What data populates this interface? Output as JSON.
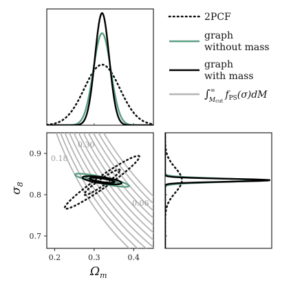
{
  "colors": {
    "pcf": "#111111",
    "graph_without_mass": "#5a9e82",
    "graph_with_mass": "#000000",
    "press_schechter": "#b4b4b4",
    "axes": "#222222"
  },
  "chart_data": {
    "type": "corner",
    "legend": {
      "placement": "top-right",
      "entries": [
        {
          "key": "pcf",
          "label": "2PCF",
          "style": "dotted"
        },
        {
          "key": "graph_without_mass",
          "label_lines": [
            "graph",
            "without mass"
          ],
          "style": "solid"
        },
        {
          "key": "graph_with_mass",
          "label_lines": [
            "graph",
            "with mass"
          ],
          "style": "solid"
        },
        {
          "key": "press_schechter",
          "label_parts": {
            "integral": "∫",
            "upper": "∞",
            "lower": "M",
            "lower_sub": "cut",
            "f": "f",
            "f_sub": "PS",
            "tail": "(σ)dM"
          },
          "style": "solid"
        }
      ]
    },
    "axes": {
      "omega_m": {
        "label_main": "Ω",
        "label_sub": "m",
        "range": [
          0.18,
          0.45
        ],
        "ticks": [
          0.2,
          0.3,
          0.4
        ],
        "tick_labels": [
          "0.2",
          "0.3",
          "0.4"
        ]
      },
      "sigma_8": {
        "label_main": "σ",
        "label_sub": "8",
        "range": [
          0.67,
          0.95
        ],
        "ticks": [
          0.7,
          0.8,
          0.9
        ],
        "tick_labels": [
          "0.7",
          "0.8",
          "0.9"
        ]
      }
    },
    "marginal_omega_m": [
      {
        "series": "pcf",
        "mean": 0.32,
        "sigma": 0.045,
        "peak": 0.54
      },
      {
        "series": "graph_without_mass",
        "mean": 0.32,
        "sigma": 0.022,
        "peak": 0.82
      },
      {
        "series": "graph_with_mass",
        "mean": 0.32,
        "sigma": 0.018,
        "peak": 1.0
      }
    ],
    "marginal_sigma_8": [
      {
        "series": "pcf",
        "mean": 0.835,
        "sigma": 0.03,
        "peak": 0.16
      },
      {
        "series": "graph_without_mass",
        "mean": 0.835,
        "sigma": 0.0045,
        "peak": 0.85
      },
      {
        "series": "graph_with_mass",
        "mean": 0.835,
        "sigma": 0.0035,
        "peak": 1.0
      }
    ],
    "joint_contours": [
      {
        "series": "pcf",
        "center": [
          0.32,
          0.83
        ],
        "ellipses": [
          {
            "a": 0.115,
            "b": 0.014,
            "angle_deg": 35
          },
          {
            "a": 0.055,
            "b": 0.008,
            "angle_deg": 35
          }
        ]
      },
      {
        "series": "graph_without_mass",
        "center": [
          0.32,
          0.835
        ],
        "ellipses": [
          {
            "a": 0.07,
            "b": 0.008,
            "angle_deg": -12
          },
          {
            "a": 0.045,
            "b": 0.0045,
            "angle_deg": -12
          }
        ]
      },
      {
        "series": "graph_with_mass",
        "center": [
          0.32,
          0.835
        ],
        "ellipses": [
          {
            "a": 0.05,
            "b": 0.0075,
            "angle_deg": -8
          },
          {
            "a": 0.032,
            "b": 0.0042,
            "angle_deg": -8
          }
        ]
      }
    ],
    "iso_mass_function": {
      "series": "press_schechter",
      "levels": [
        {
          "value": "0.30",
          "label": "0.30"
        },
        {
          "value": "0.18",
          "label": "0.18"
        },
        {
          "value": "0.06",
          "label": "0.06"
        }
      ],
      "n_lines": 11,
      "slope": -0.55
    }
  }
}
